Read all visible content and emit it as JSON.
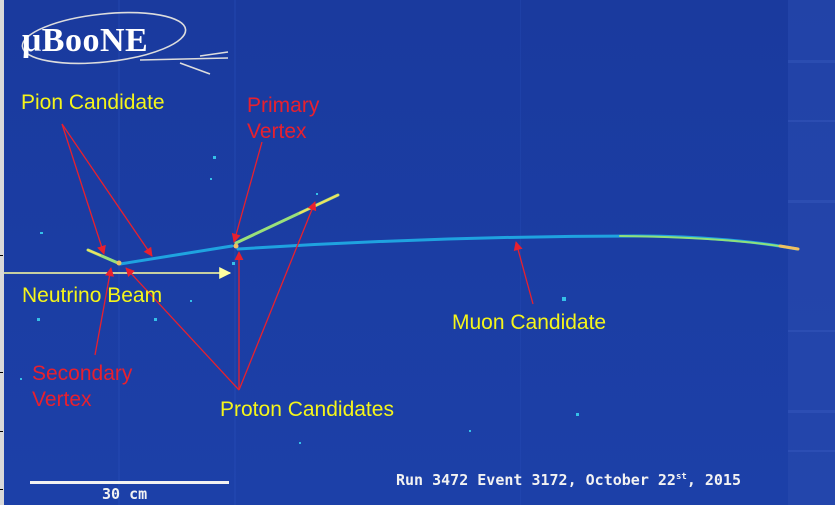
{
  "logo": {
    "text": "μBooNE"
  },
  "labels": {
    "pion": "Pion Candidate",
    "primary_line1": "Primary",
    "primary_line2": "Vertex",
    "beam": "Neutrino Beam",
    "muon": "Muon Candidate",
    "secondary_line1": "Secondary",
    "secondary_line2": "Vertex",
    "proton": "Proton Candidates"
  },
  "footer": {
    "run_text": "Run 3472 Event 3172, October 22",
    "run_sup": "st",
    "run_year": ", 2015",
    "scale_label": "30 cm"
  },
  "colors": {
    "background": "#1b3da3",
    "track": "#1fa3e0",
    "label_yellow": "#f5f51a",
    "label_red": "#e8202e"
  }
}
